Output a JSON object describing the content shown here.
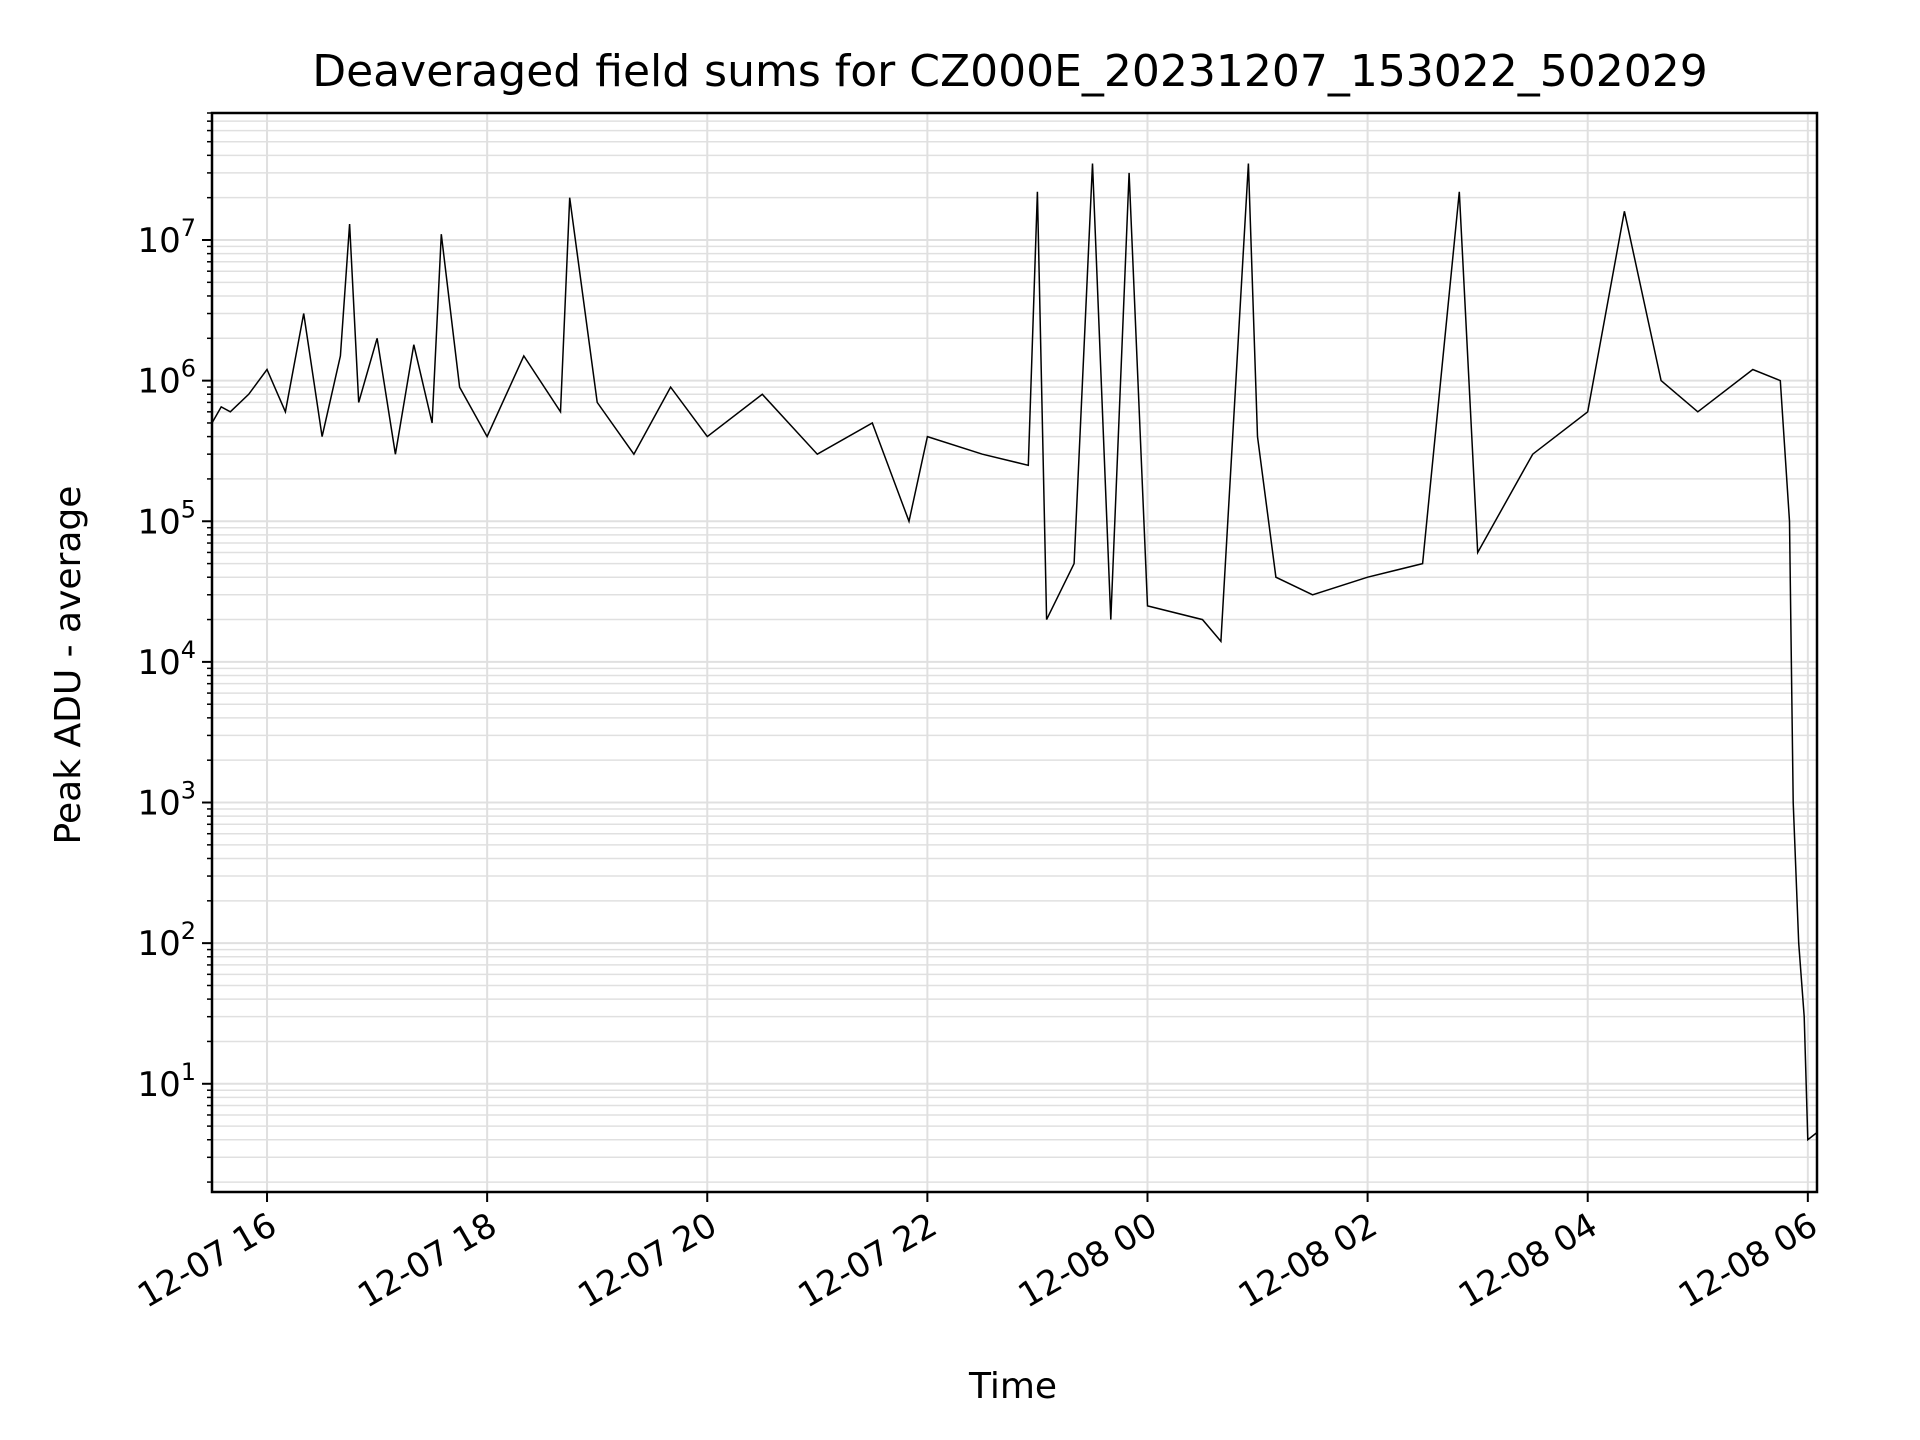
{
  "chart_data": {
    "type": "line",
    "title": "Deaveraged field sums for CZ000E_20231207_153022_502029",
    "xlabel": "Time",
    "ylabel": "Peak ADU - average",
    "xscale": "time",
    "yscale": "log",
    "grid": true,
    "line_color": "#000000",
    "grid_color": "#e0e0e0",
    "xlim": [
      "2023-12-07 15:30",
      "2023-12-08 06:05"
    ],
    "ylim": [
      1.7,
      80000000
    ],
    "x_ticks": [
      {
        "t": "2023-12-07 16:00",
        "label": "12-07 16"
      },
      {
        "t": "2023-12-07 18:00",
        "label": "12-07 18"
      },
      {
        "t": "2023-12-07 20:00",
        "label": "12-07 20"
      },
      {
        "t": "2023-12-07 22:00",
        "label": "12-07 22"
      },
      {
        "t": "2023-12-08 00:00",
        "label": "12-08 00"
      },
      {
        "t": "2023-12-08 02:00",
        "label": "12-08 02"
      },
      {
        "t": "2023-12-08 04:00",
        "label": "12-08 04"
      },
      {
        "t": "2023-12-08 06:00",
        "label": "12-08 06"
      }
    ],
    "y_ticks": [
      {
        "value": 10,
        "base": "10",
        "exp": "1"
      },
      {
        "value": 100,
        "base": "10",
        "exp": "2"
      },
      {
        "value": 1000,
        "base": "10",
        "exp": "3"
      },
      {
        "value": 10000,
        "base": "10",
        "exp": "4"
      },
      {
        "value": 100000,
        "base": "10",
        "exp": "5"
      },
      {
        "value": 1000000,
        "base": "10",
        "exp": "6"
      },
      {
        "value": 10000000,
        "base": "10",
        "exp": "7"
      }
    ],
    "series": [
      {
        "values": [
          [
            "2023-12-07 15:30",
            500000
          ],
          [
            "2023-12-07 15:35",
            650000
          ],
          [
            "2023-12-07 15:40",
            600000
          ],
          [
            "2023-12-07 15:50",
            800000
          ],
          [
            "2023-12-07 16:00",
            1200000
          ],
          [
            "2023-12-07 16:10",
            600000
          ],
          [
            "2023-12-07 16:20",
            3000000
          ],
          [
            "2023-12-07 16:30",
            400000
          ],
          [
            "2023-12-07 16:40",
            1500000
          ],
          [
            "2023-12-07 16:45",
            13000000
          ],
          [
            "2023-12-07 16:50",
            700000
          ],
          [
            "2023-12-07 17:00",
            2000000
          ],
          [
            "2023-12-07 17:10",
            300000
          ],
          [
            "2023-12-07 17:20",
            1800000
          ],
          [
            "2023-12-07 17:30",
            500000
          ],
          [
            "2023-12-07 17:35",
            11000000
          ],
          [
            "2023-12-07 17:45",
            900000
          ],
          [
            "2023-12-07 18:00",
            400000
          ],
          [
            "2023-12-07 18:20",
            1500000
          ],
          [
            "2023-12-07 18:40",
            600000
          ],
          [
            "2023-12-07 18:45",
            20000000
          ],
          [
            "2023-12-07 19:00",
            700000
          ],
          [
            "2023-12-07 19:20",
            300000
          ],
          [
            "2023-12-07 19:40",
            900000
          ],
          [
            "2023-12-07 20:00",
            400000
          ],
          [
            "2023-12-07 20:30",
            800000
          ],
          [
            "2023-12-07 21:00",
            300000
          ],
          [
            "2023-12-07 21:30",
            500000
          ],
          [
            "2023-12-07 21:50",
            100000
          ],
          [
            "2023-12-07 22:00",
            400000
          ],
          [
            "2023-12-07 22:30",
            300000
          ],
          [
            "2023-12-07 22:55",
            250000
          ],
          [
            "2023-12-07 23:00",
            22000000
          ],
          [
            "2023-12-07 23:05",
            20000
          ],
          [
            "2023-12-07 23:20",
            50000
          ],
          [
            "2023-12-07 23:30",
            35000000
          ],
          [
            "2023-12-07 23:40",
            20000
          ],
          [
            "2023-12-07 23:50",
            30000000
          ],
          [
            "2023-12-08 00:00",
            25000
          ],
          [
            "2023-12-08 00:30",
            20000
          ],
          [
            "2023-12-08 00:40",
            14000
          ],
          [
            "2023-12-08 00:55",
            35000000
          ],
          [
            "2023-12-08 01:00",
            400000
          ],
          [
            "2023-12-08 01:10",
            40000
          ],
          [
            "2023-12-08 01:30",
            30000
          ],
          [
            "2023-12-08 02:00",
            40000
          ],
          [
            "2023-12-08 02:30",
            50000
          ],
          [
            "2023-12-08 02:50",
            22000000
          ],
          [
            "2023-12-08 03:00",
            60000
          ],
          [
            "2023-12-08 03:30",
            300000
          ],
          [
            "2023-12-08 04:00",
            600000
          ],
          [
            "2023-12-08 04:20",
            16000000
          ],
          [
            "2023-12-08 04:40",
            1000000
          ],
          [
            "2023-12-08 05:00",
            600000
          ],
          [
            "2023-12-08 05:30",
            1200000
          ],
          [
            "2023-12-08 05:45",
            1000000
          ],
          [
            "2023-12-08 05:50",
            100000
          ],
          [
            "2023-12-08 05:52",
            1000
          ],
          [
            "2023-12-08 05:55",
            100
          ],
          [
            "2023-12-08 05:58",
            30
          ],
          [
            "2023-12-08 06:00",
            4
          ],
          [
            "2023-12-08 06:05",
            4.5
          ]
        ]
      }
    ]
  }
}
